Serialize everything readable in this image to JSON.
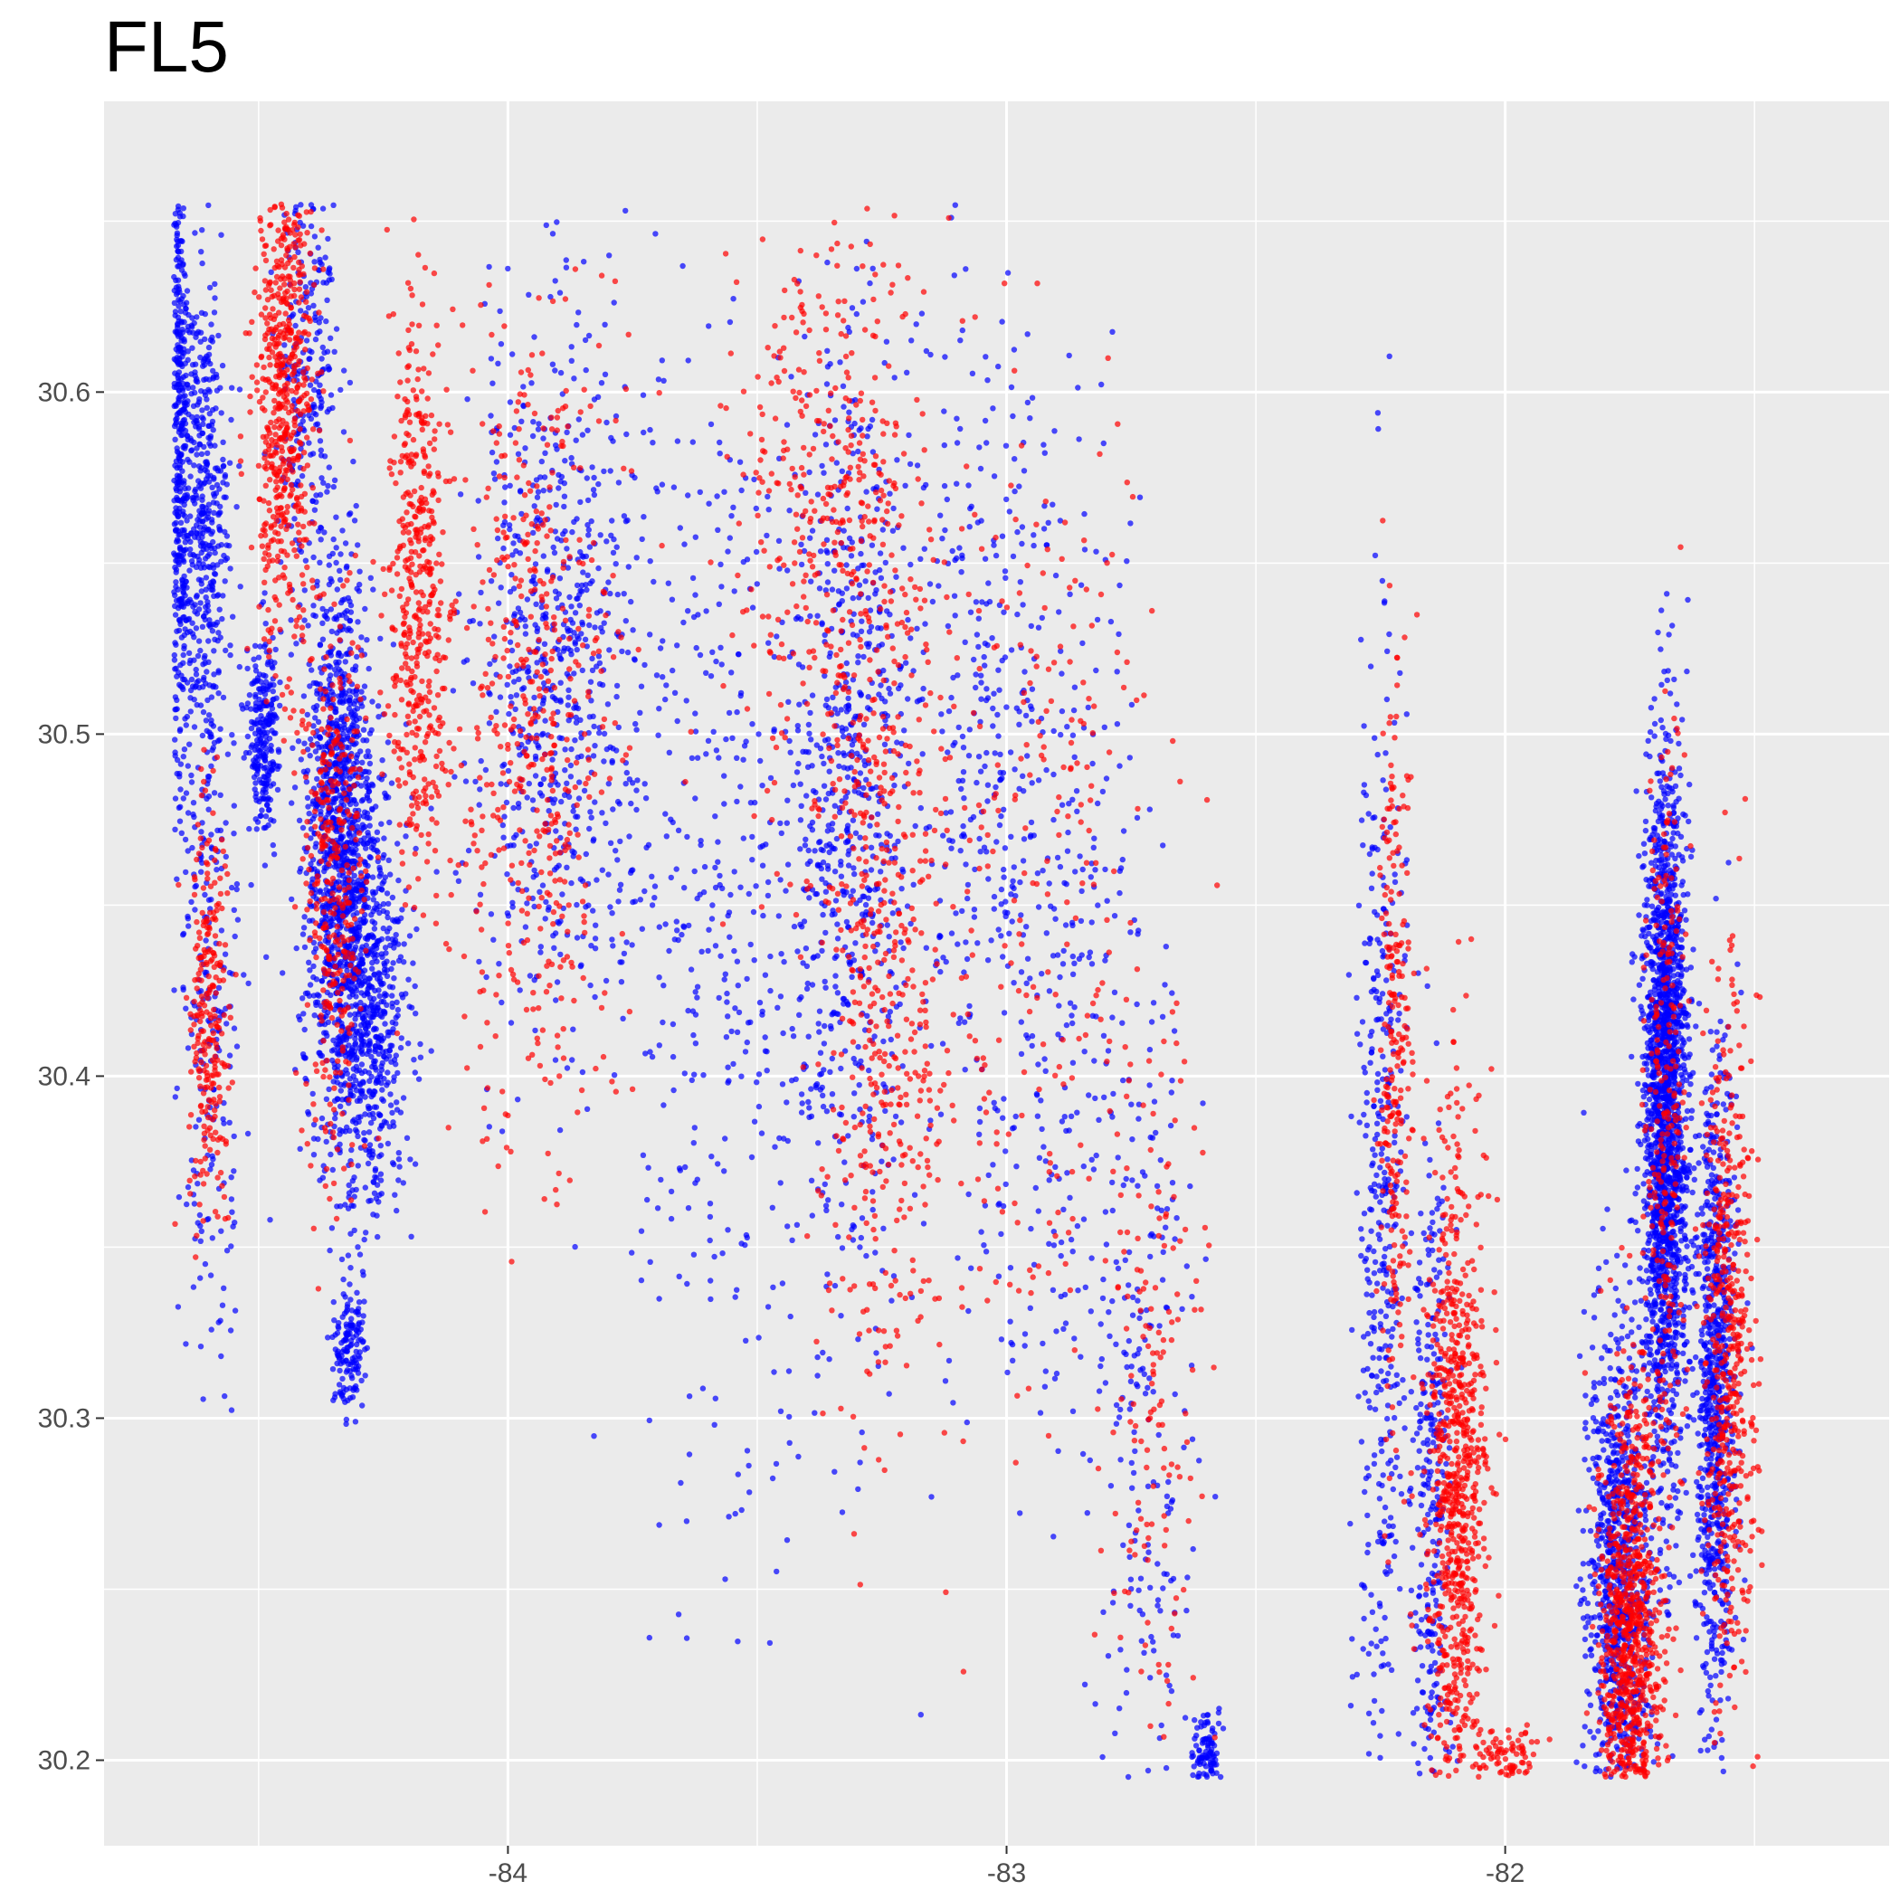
{
  "chart_data": {
    "type": "scatter",
    "title": "FL5",
    "xlabel": "",
    "ylabel": "",
    "xlim": [
      -84.81,
      -81.23
    ],
    "ylim": [
      30.175,
      30.685
    ],
    "x_ticks": [
      {
        "value": -84,
        "label": "-84"
      },
      {
        "value": -83,
        "label": "-83"
      },
      {
        "value": -82,
        "label": "-82"
      }
    ],
    "y_ticks": [
      {
        "value": 30.2,
        "label": "30.2"
      },
      {
        "value": 30.3,
        "label": "30.3"
      },
      {
        "value": 30.4,
        "label": "30.4"
      },
      {
        "value": 30.5,
        "label": "30.5"
      },
      {
        "value": 30.6,
        "label": "30.6"
      }
    ],
    "grid": true,
    "legend": "none",
    "colors": {
      "panel": "#ebebeb",
      "grid": "#ffffff",
      "tick": "#333333",
      "tick_label": "#4d4d4d"
    },
    "series": [
      {
        "color": "#0000ff",
        "clusters": [
          {
            "x": -84.66,
            "y": 30.6,
            "sx": 0.01,
            "sy": 0.06,
            "n": 500
          },
          {
            "x": -84.61,
            "y": 30.57,
            "sx": 0.025,
            "sy": 0.03,
            "n": 400
          },
          {
            "x": -84.34,
            "y": 30.47,
            "sx": 0.035,
            "sy": 0.04,
            "n": 1100
          },
          {
            "x": -84.28,
            "y": 30.42,
            "sx": 0.04,
            "sy": 0.03,
            "n": 700
          },
          {
            "x": -84.49,
            "y": 30.5,
            "sx": 0.015,
            "sy": 0.015,
            "n": 250
          },
          {
            "x": -84.32,
            "y": 30.32,
            "sx": 0.015,
            "sy": 0.01,
            "n": 150
          },
          {
            "x": -84.4,
            "y": 30.61,
            "sx": 0.03,
            "sy": 0.03,
            "n": 250
          },
          {
            "x": -84.6,
            "y": 30.45,
            "sx": 0.035,
            "sy": 0.06,
            "n": 300
          },
          {
            "x": -83.9,
            "y": 30.52,
            "sx": 0.09,
            "sy": 0.05,
            "n": 700
          },
          {
            "x": -83.55,
            "y": 30.45,
            "sx": 0.12,
            "sy": 0.09,
            "n": 450
          },
          {
            "x": -83.31,
            "y": 30.48,
            "sx": 0.06,
            "sy": 0.07,
            "n": 650
          },
          {
            "x": -83.05,
            "y": 30.5,
            "sx": 0.08,
            "sy": 0.07,
            "n": 300
          },
          {
            "x": -82.9,
            "y": 30.42,
            "sx": 0.1,
            "sy": 0.08,
            "n": 300
          },
          {
            "x": -82.72,
            "y": 30.3,
            "sx": 0.05,
            "sy": 0.07,
            "n": 200
          },
          {
            "x": -82.25,
            "y": 30.35,
            "sx": 0.025,
            "sy": 0.08,
            "n": 400
          },
          {
            "x": -82.15,
            "y": 30.28,
            "sx": 0.02,
            "sy": 0.05,
            "n": 300
          },
          {
            "x": -81.68,
            "y": 30.39,
            "sx": 0.022,
            "sy": 0.05,
            "n": 1900
          },
          {
            "x": -81.58,
            "y": 30.31,
            "sx": 0.02,
            "sy": 0.05,
            "n": 800
          },
          {
            "x": -81.77,
            "y": 30.25,
            "sx": 0.035,
            "sy": 0.04,
            "n": 900
          },
          {
            "x": -82.6,
            "y": 30.2,
            "sx": 0.015,
            "sy": 0.006,
            "n": 120
          }
        ]
      },
      {
        "color": "#ff0000",
        "clusters": [
          {
            "x": -84.45,
            "y": 30.6,
            "sx": 0.03,
            "sy": 0.04,
            "n": 600
          },
          {
            "x": -84.18,
            "y": 30.54,
            "sx": 0.03,
            "sy": 0.04,
            "n": 450
          },
          {
            "x": -84.35,
            "y": 30.46,
            "sx": 0.03,
            "sy": 0.04,
            "n": 350
          },
          {
            "x": -84.6,
            "y": 30.42,
            "sx": 0.02,
            "sy": 0.03,
            "n": 250
          },
          {
            "x": -83.95,
            "y": 30.5,
            "sx": 0.08,
            "sy": 0.06,
            "n": 500
          },
          {
            "x": -83.35,
            "y": 30.56,
            "sx": 0.1,
            "sy": 0.05,
            "n": 450
          },
          {
            "x": -83.25,
            "y": 30.42,
            "sx": 0.06,
            "sy": 0.06,
            "n": 400
          },
          {
            "x": -82.95,
            "y": 30.45,
            "sx": 0.12,
            "sy": 0.08,
            "n": 250
          },
          {
            "x": -82.1,
            "y": 30.28,
            "sx": 0.03,
            "sy": 0.05,
            "n": 800
          },
          {
            "x": -82.22,
            "y": 30.4,
            "sx": 0.015,
            "sy": 0.06,
            "n": 250
          },
          {
            "x": -81.75,
            "y": 30.23,
            "sx": 0.03,
            "sy": 0.04,
            "n": 1000
          },
          {
            "x": -81.55,
            "y": 30.32,
            "sx": 0.025,
            "sy": 0.05,
            "n": 500
          },
          {
            "x": -81.68,
            "y": 30.38,
            "sx": 0.02,
            "sy": 0.06,
            "n": 250
          },
          {
            "x": -82.7,
            "y": 30.3,
            "sx": 0.05,
            "sy": 0.06,
            "n": 150
          },
          {
            "x": -82.0,
            "y": 30.2,
            "sx": 0.04,
            "sy": 0.006,
            "n": 100
          }
        ]
      }
    ]
  }
}
